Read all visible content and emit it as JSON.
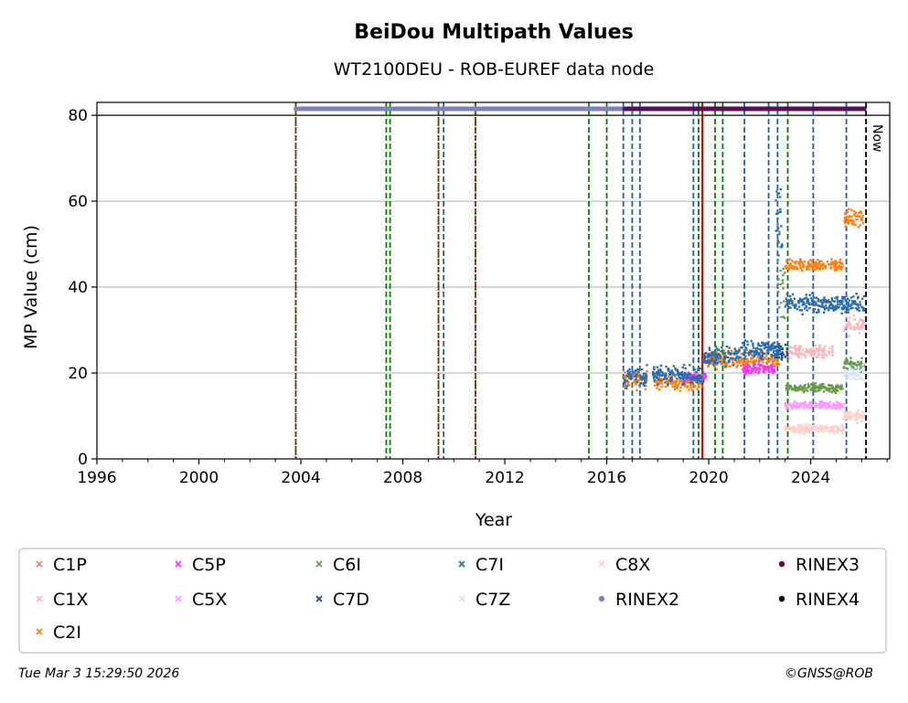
{
  "footer": {
    "timestamp": "Tue Mar  3 15:29:50 2026",
    "credit": "©GNSS@ROB"
  },
  "chart_data": {
    "type": "scatter",
    "title": "BeiDou Multipath Values",
    "subtitle": "WT2100DEU - ROB-EUREF data node",
    "xlabel": "Year",
    "ylabel": "MP Value (cm)",
    "xlim": [
      1996,
      2027.1
    ],
    "ylim": [
      0,
      83
    ],
    "x_ticks": [
      "1996",
      "2000",
      "2004",
      "2008",
      "2012",
      "2016",
      "2020",
      "2024"
    ],
    "y_ticks": [
      "0",
      "20",
      "40",
      "60",
      "80"
    ],
    "grid": "horizontal",
    "legend_position": "bottom",
    "now_label": "Now",
    "now_year": 2026.17,
    "series": [
      {
        "name": "C1P",
        "color": "#f08080",
        "marker": "x",
        "segments": []
      },
      {
        "name": "C1X",
        "color": "#ffb6b9",
        "marker": "x",
        "segments": [
          {
            "x0": 2023.0,
            "x1": 2024.9,
            "y": 25,
            "spread": 2
          },
          {
            "x0": 2025.3,
            "x1": 2026.1,
            "y": 31,
            "spread": 3
          }
        ]
      },
      {
        "name": "C2I",
        "color": "#ff7f0e",
        "marker": "x",
        "segments": [
          {
            "x0": 2016.7,
            "x1": 2017.6,
            "y": 18.5,
            "spread": 3
          },
          {
            "x0": 2017.8,
            "x1": 2019.8,
            "y": 18,
            "spread": 2.5
          },
          {
            "x0": 2019.8,
            "x1": 2022.8,
            "y": 23,
            "spread": 3
          },
          {
            "x0": 2023.0,
            "x1": 2025.3,
            "y": 45,
            "spread": 2
          },
          {
            "x0": 2025.3,
            "x1": 2026.1,
            "y": 56,
            "spread": 3
          }
        ]
      },
      {
        "name": "C5P",
        "color": "#ff33ff",
        "marker": "x",
        "segments": [
          {
            "x0": 2019.0,
            "x1": 2019.9,
            "y": 19,
            "spread": 1.5
          },
          {
            "x0": 2021.3,
            "x1": 2022.6,
            "y": 21,
            "spread": 2
          }
        ]
      },
      {
        "name": "C5X",
        "color": "#ff99ff",
        "marker": "x",
        "segments": [
          {
            "x0": 2023.0,
            "x1": 2025.3,
            "y": 12.5,
            "spread": 1.2
          }
        ]
      },
      {
        "name": "C6I",
        "color": "#6b9a4c",
        "marker": "x",
        "segments": [
          {
            "x0": 2022.7,
            "x1": 2023.0,
            "y": 40,
            "spread": 18
          },
          {
            "x0": 2023.0,
            "x1": 2025.3,
            "y": 16.5,
            "spread": 1.5
          },
          {
            "x0": 2025.3,
            "x1": 2026.1,
            "y": 22,
            "spread": 2
          }
        ]
      },
      {
        "name": "C7D",
        "color": "#1f4e79",
        "marker": "x",
        "segments": [
          {
            "x0": 2022.6,
            "x1": 2023.1,
            "y": 25,
            "spread": 3
          }
        ]
      },
      {
        "name": "C7I",
        "color": "#2b6cb0",
        "marker": "x",
        "segments": [
          {
            "x0": 2016.7,
            "x1": 2017.6,
            "y": 19,
            "spread": 3.5
          },
          {
            "x0": 2017.8,
            "x1": 2019.8,
            "y": 19.5,
            "spread": 3
          },
          {
            "x0": 2019.8,
            "x1": 2021.2,
            "y": 24,
            "spread": 3
          },
          {
            "x0": 2021.2,
            "x1": 2022.8,
            "y": 25.5,
            "spread": 3
          },
          {
            "x0": 2022.6,
            "x1": 2022.9,
            "y": 55,
            "spread": 22
          },
          {
            "x0": 2023.0,
            "x1": 2026.1,
            "y": 36,
            "spread": 3
          }
        ]
      },
      {
        "name": "C7Z",
        "color": "#d6e6f7",
        "marker": "x",
        "segments": [
          {
            "x0": 2025.3,
            "x1": 2026.1,
            "y": 20,
            "spread": 2.5
          }
        ]
      },
      {
        "name": "C8X",
        "color": "#ffd0c8",
        "marker": "x",
        "segments": [
          {
            "x0": 2023.0,
            "x1": 2025.3,
            "y": 7,
            "spread": 1.5
          },
          {
            "x0": 2025.3,
            "x1": 2026.1,
            "y": 10,
            "spread": 2
          }
        ]
      },
      {
        "name": "RINEX2",
        "color": "#8080c0",
        "marker": "dot",
        "segments": [
          {
            "x0": 2003.8,
            "x1": 2016.7,
            "y": 81.5,
            "spread": 0
          }
        ]
      },
      {
        "name": "RINEX3",
        "color": "#5c0a5c",
        "marker": "dot",
        "segments": [
          {
            "x0": 2016.7,
            "x1": 2026.1,
            "y": 81.5,
            "spread": 0
          }
        ]
      },
      {
        "name": "RINEX4",
        "color": "#000000",
        "marker": "dot",
        "segments": []
      }
    ],
    "event_lines": [
      {
        "x": 2003.8,
        "color": "#008000",
        "style": "dashed"
      },
      {
        "x": 2003.8,
        "color": "#cc0000",
        "style": "dotted"
      },
      {
        "x": 2007.35,
        "color": "#008000",
        "style": "dashed"
      },
      {
        "x": 2007.5,
        "color": "#008000",
        "style": "dashed"
      },
      {
        "x": 2009.4,
        "color": "#008000",
        "style": "dashed"
      },
      {
        "x": 2009.4,
        "color": "#cc0000",
        "style": "dotted"
      },
      {
        "x": 2009.6,
        "color": "#1f5fa8",
        "style": "dashed"
      },
      {
        "x": 2010.85,
        "color": "#008000",
        "style": "dashed"
      },
      {
        "x": 2010.85,
        "color": "#cc0000",
        "style": "dotted"
      },
      {
        "x": 2015.3,
        "color": "#008000",
        "style": "dashed"
      },
      {
        "x": 2016.0,
        "color": "#008000",
        "style": "dashed"
      },
      {
        "x": 2016.65,
        "color": "#1f5fa8",
        "style": "dashed"
      },
      {
        "x": 2017.0,
        "color": "#1f5fa8",
        "style": "dashed"
      },
      {
        "x": 2017.3,
        "color": "#1f5fa8",
        "style": "dashed"
      },
      {
        "x": 2019.4,
        "color": "#1f5fa8",
        "style": "dashed"
      },
      {
        "x": 2019.6,
        "color": "#008000",
        "style": "dashed"
      },
      {
        "x": 2019.75,
        "color": "#cc0000",
        "style": "solid"
      },
      {
        "x": 2020.25,
        "color": "#008000",
        "style": "dashed"
      },
      {
        "x": 2020.55,
        "color": "#008000",
        "style": "dashed"
      },
      {
        "x": 2021.4,
        "color": "#1f5fa8",
        "style": "dashed"
      },
      {
        "x": 2022.35,
        "color": "#1f5fa8",
        "style": "dashed"
      },
      {
        "x": 2022.7,
        "color": "#1f5fa8",
        "style": "dashed"
      },
      {
        "x": 2023.1,
        "color": "#008000",
        "style": "dashed"
      },
      {
        "x": 2024.1,
        "color": "#1f5fa8",
        "style": "dashed"
      },
      {
        "x": 2025.4,
        "color": "#1f5fa8",
        "style": "dashed"
      },
      {
        "x": 2026.17,
        "color": "#000000",
        "style": "dashed"
      }
    ]
  }
}
